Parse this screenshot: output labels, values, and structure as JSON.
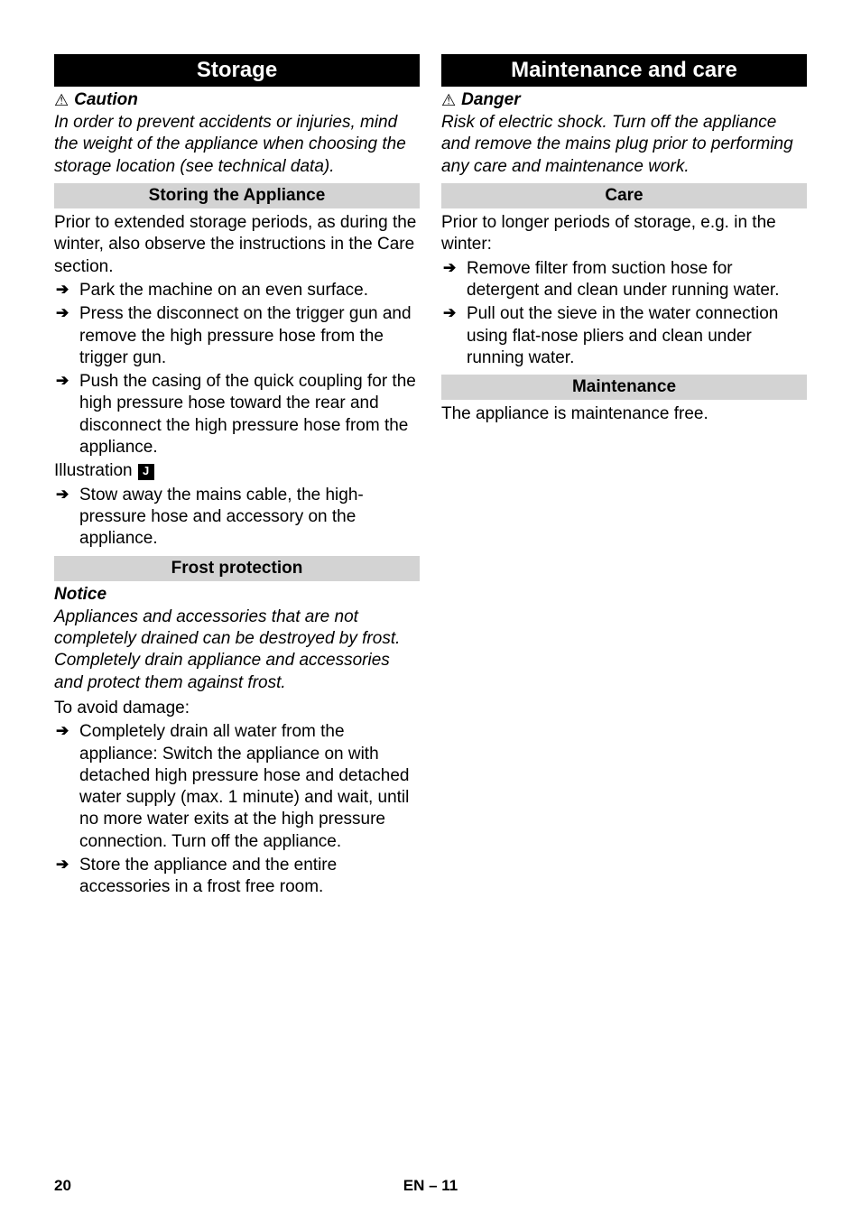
{
  "left": {
    "h1": "Storage",
    "caution_label": "Caution",
    "caution_text": "In order to prevent accidents or injuries, mind the weight of the appliance when choosing the storage location (see technical data).",
    "h2a": "Storing the Appliance",
    "storing_intro": "Prior to extended storage periods, as during the winter, also observe the instructions in the Care section.",
    "storing_items": [
      "Park the machine on an even surface.",
      "Press the disconnect on the trigger gun and remove the high pressure hose from the trigger gun.",
      "Push the casing of the quick coupling for the high pressure hose toward the rear and disconnect the high pressure hose from the appliance."
    ],
    "illus_label": "Illustration",
    "illus_letter": "J",
    "storing_items2": [
      "Stow away the mains cable, the high-pressure hose and accessory on the appliance."
    ],
    "h2b": "Frost protection",
    "notice_label": "Notice",
    "notice_text": "Appliances and accessories that are not completely drained can be destroyed by frost. Completely drain appliance and accessories and protect them against frost.",
    "avoid_label": "To avoid damage:",
    "frost_items": [
      "Completely drain all water from the appliance: Switch the appliance on with detached high pressure hose and detached water supply (max. 1 minute) and wait, until no more water exits at the high pressure connection. Turn off the appliance.",
      "Store the appliance and the entire accessories in a frost free room."
    ]
  },
  "right": {
    "h1": "Maintenance and care",
    "danger_label": "Danger",
    "danger_text": "Risk of electric shock. Turn off the appliance and remove the mains plug prior to performing any care and maintenance work.",
    "h2a": "Care",
    "care_intro": "Prior to longer periods of storage, e.g. in the winter:",
    "care_items": [
      "Remove filter from suction hose for detergent and clean under running water.",
      "Pull out the sieve in the water connection using flat-nose pliers and clean under running water."
    ],
    "h2b": "Maintenance",
    "maint_text": "The appliance is maintenance free."
  },
  "footer": {
    "page": "20",
    "center": "EN – 11"
  }
}
